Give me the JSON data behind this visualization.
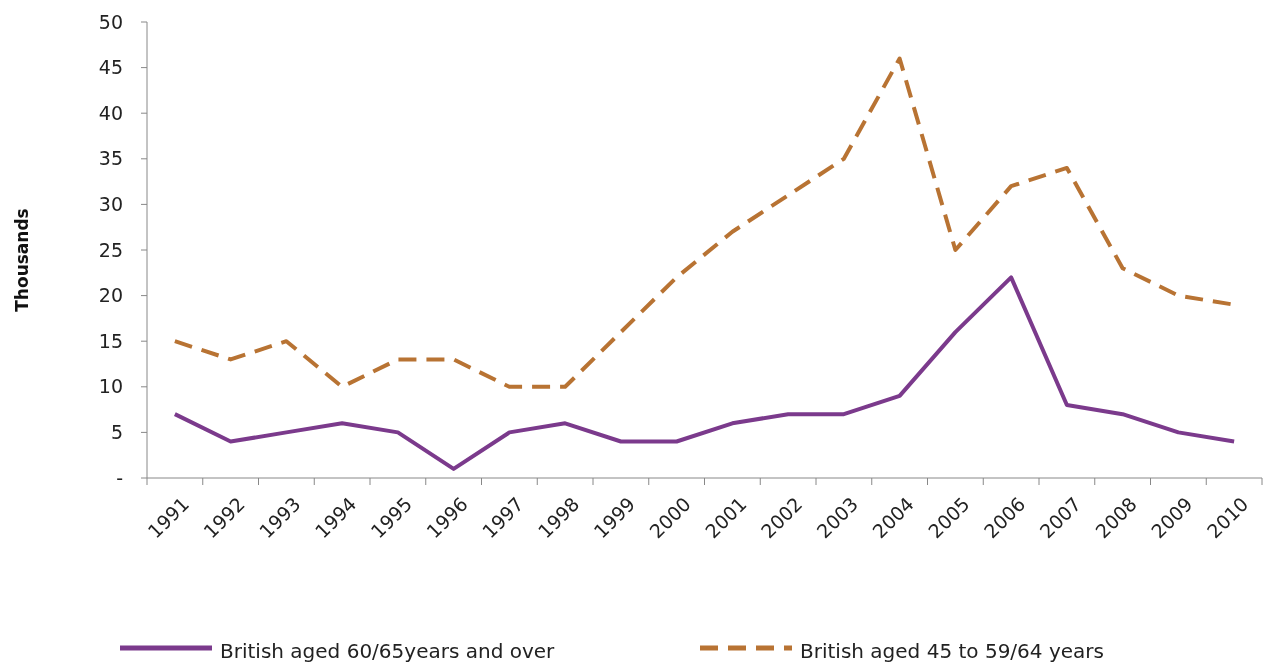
{
  "chart_data": {
    "type": "line",
    "ylabel": "Thousands",
    "categories": [
      "1991",
      "1992",
      "1993",
      "1994",
      "1995",
      "1996",
      "1997",
      "1998",
      "1999",
      "2000",
      "2001",
      "2002",
      "2003",
      "2004",
      "2005",
      "2006",
      "2007",
      "2008",
      "2009",
      "2010"
    ],
    "series": [
      {
        "name": "British aged 60/65years and over",
        "color": "#7b3a8c",
        "line_style": "solid",
        "values": [
          7,
          4,
          5,
          6,
          5,
          1,
          5,
          6,
          4,
          4,
          6,
          7,
          7,
          9,
          16,
          22,
          8,
          7,
          5,
          4
        ]
      },
      {
        "name": "British aged 45 to 59/64 years",
        "color": "#b87333",
        "line_style": "dashed",
        "values": [
          15,
          13,
          15,
          10,
          13,
          13,
          10,
          10,
          16,
          22,
          27,
          31,
          35,
          46,
          25,
          32,
          34,
          23,
          20,
          19
        ]
      }
    ],
    "ylim": [
      0,
      50
    ],
    "yticks": [
      {
        "value": 0,
        "label": "-"
      },
      5,
      10,
      15,
      20,
      25,
      30,
      35,
      40,
      45,
      50
    ],
    "grid": false,
    "legend": "bottom",
    "marker": "none"
  }
}
